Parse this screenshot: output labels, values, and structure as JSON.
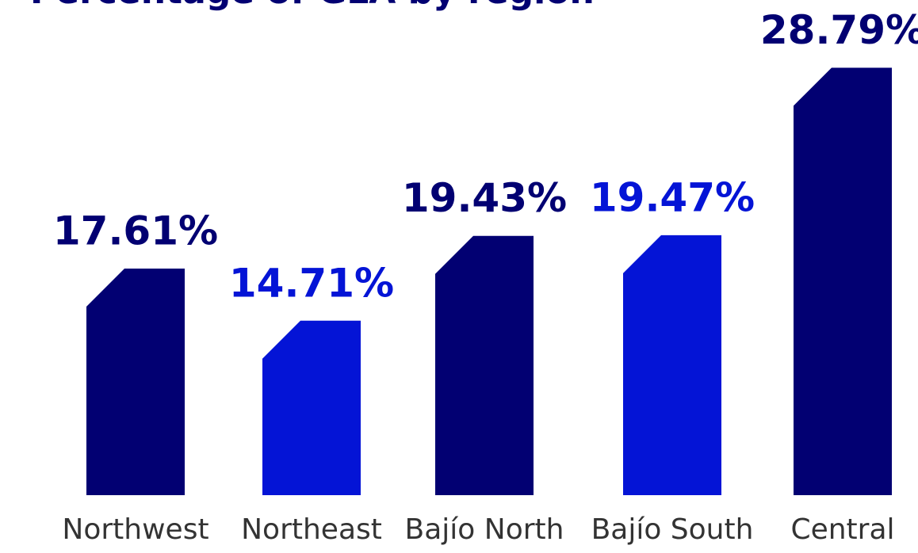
{
  "chart_data": {
    "type": "bar",
    "title": "Percentage of GLA by region",
    "categories": [
      "Northwest",
      "Northeast",
      "Bajío North",
      "Bajío South",
      "Central"
    ],
    "values": [
      17.61,
      14.71,
      19.43,
      19.47,
      28.79
    ],
    "value_labels": [
      "17.61%",
      "14.71%",
      "19.43%",
      "19.47%",
      "28.79%"
    ],
    "colors": [
      "#020072",
      "#0414d6",
      "#020072",
      "#0414d6",
      "#020072"
    ],
    "ylim": [
      5,
      30
    ]
  }
}
